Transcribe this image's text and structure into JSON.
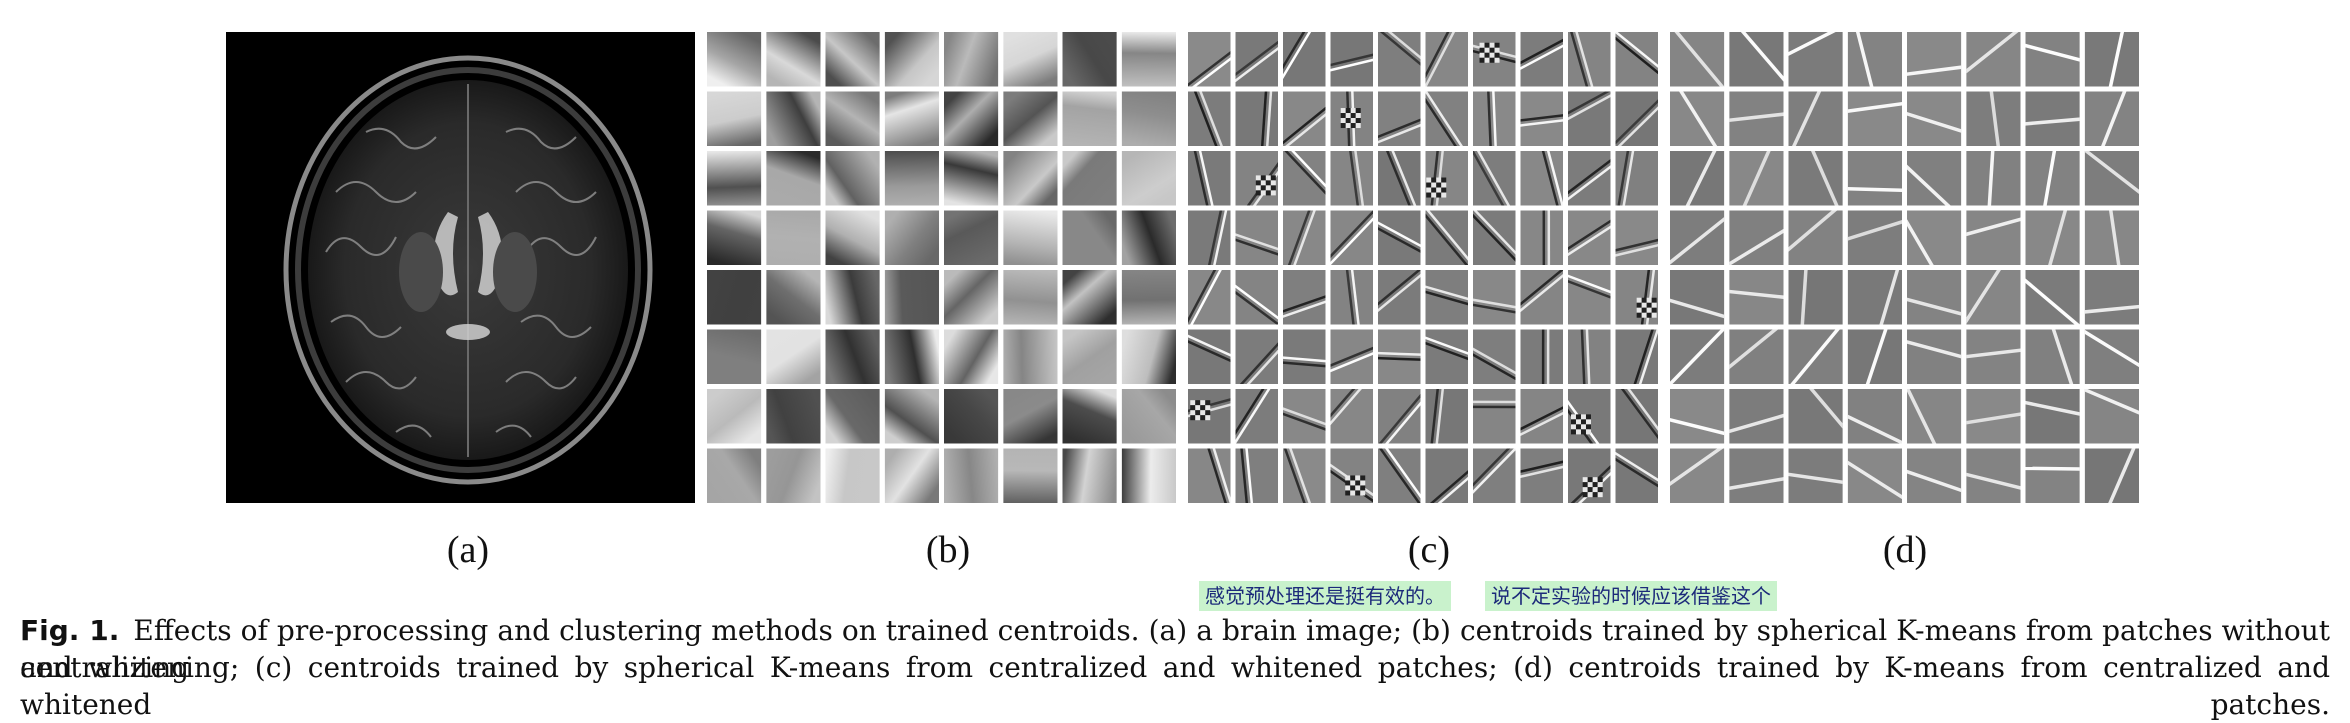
{
  "figure": {
    "panels": [
      {
        "id": "a",
        "label": "(a)",
        "content": "brain MRI image"
      },
      {
        "id": "b",
        "label": "(b)",
        "content": "centroid patch grid",
        "rows": 8,
        "cols": 8,
        "style": "smooth"
      },
      {
        "id": "c",
        "label": "(c)",
        "content": "centroid patch grid",
        "rows": 8,
        "cols": 10,
        "style": "edge"
      },
      {
        "id": "d",
        "label": "(d)",
        "content": "centroid patch grid",
        "rows": 8,
        "cols": 8,
        "style": "line"
      }
    ],
    "annotations": [
      "感觉预处理还是挺有效的。",
      "说不定实验的时候应该借鉴这个"
    ],
    "caption": {
      "fig_label": "Fig. 1.",
      "line1": "Effects of pre-processing and clustering methods on trained centroids. (a) a brain image; (b) centroids trained by spherical K-means from patches without centralizing",
      "line2": "and whitening; (c) centroids trained by spherical K-means from centralized and whitened patches; (d) centroids trained by K-means from centralized and whitened patches."
    }
  },
  "colors": {
    "background": "#ffffff",
    "patch_gray": "#808080",
    "annotation_highlight": "#c9f2cc",
    "annotation_text": "#1c2a7a"
  }
}
